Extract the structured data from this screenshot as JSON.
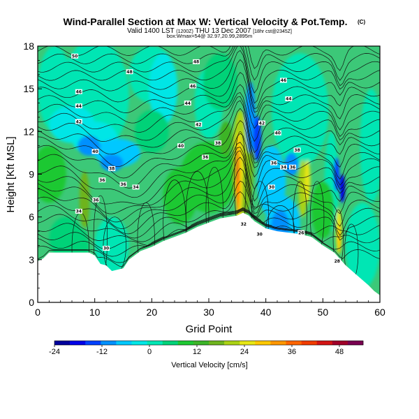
{
  "chart_data": {
    "type": "heatmap",
    "title": "Wind-Parallel Section at Max W: Vertical Velocity & Pot.Temp.",
    "title_mark": "(C)",
    "subtitle_parts": [
      "Valid 1400 LST",
      "(1200Z)",
      "THU 13 Dec 2007",
      "[18hr cst@2345Z]"
    ],
    "subtitle2": "box:Wmax=54@ 32.97,20.99,2895m",
    "xlabel": "Grid Point",
    "ylabel": "Height [Kft MSL]",
    "xlim": [
      0,
      60
    ],
    "ylim": [
      0,
      18
    ],
    "x_ticks": [
      0,
      10,
      20,
      30,
      40,
      50,
      60
    ],
    "y_ticks": [
      0,
      3,
      6,
      9,
      12,
      15,
      18
    ],
    "colorbar": {
      "label": "Vertical Velocity [cm/s]",
      "range": [
        -24,
        54
      ],
      "ticks": [
        -24,
        -12,
        0,
        12,
        24,
        36,
        48
      ],
      "colors": [
        "#00009c",
        "#0000e6",
        "#0040ff",
        "#0090ff",
        "#00c8ff",
        "#00e6e6",
        "#00e6b4",
        "#00d278",
        "#1ec832",
        "#3cb428",
        "#6eb41e",
        "#aad214",
        "#e6e614",
        "#ffc800",
        "#ff9600",
        "#ff6400",
        "#f03c00",
        "#d21414",
        "#a00028",
        "#780050"
      ]
    },
    "contour_labels": [
      {
        "text": "50",
        "x": 6.5,
        "y": 17.3
      },
      {
        "text": "48",
        "x": 27.8,
        "y": 16.9
      },
      {
        "text": "48",
        "x": 16.1,
        "y": 16.2
      },
      {
        "text": "46",
        "x": 43.1,
        "y": 15.6
      },
      {
        "text": "46",
        "x": 7.2,
        "y": 14.8
      },
      {
        "text": "46",
        "x": 27.2,
        "y": 15.2
      },
      {
        "text": "44",
        "x": 7.2,
        "y": 13.8
      },
      {
        "text": "44",
        "x": 26.3,
        "y": 14.0
      },
      {
        "text": "44",
        "x": 44.0,
        "y": 14.3
      },
      {
        "text": "42",
        "x": 7.2,
        "y": 12.7
      },
      {
        "text": "42",
        "x": 28.2,
        "y": 12.5
      },
      {
        "text": "42",
        "x": 39.3,
        "y": 12.6
      },
      {
        "text": "40",
        "x": 10.1,
        "y": 10.6
      },
      {
        "text": "40",
        "x": 25.1,
        "y": 11.0
      },
      {
        "text": "40",
        "x": 42.1,
        "y": 11.9
      },
      {
        "text": "38",
        "x": 31.6,
        "y": 11.2
      },
      {
        "text": "38",
        "x": 45.5,
        "y": 10.7
      },
      {
        "text": "38",
        "x": 13.0,
        "y": 9.4
      },
      {
        "text": "36",
        "x": 29.4,
        "y": 10.2
      },
      {
        "text": "36",
        "x": 41.4,
        "y": 9.8
      },
      {
        "text": "34",
        "x": 43.1,
        "y": 9.5
      },
      {
        "text": "36",
        "x": 44.7,
        "y": 9.5
      },
      {
        "text": "36",
        "x": 11.3,
        "y": 8.6
      },
      {
        "text": "36",
        "x": 15.0,
        "y": 8.3
      },
      {
        "text": "34",
        "x": 17.2,
        "y": 8.1
      },
      {
        "text": "30",
        "x": 41.0,
        "y": 8.1
      },
      {
        "text": "34",
        "x": 7.2,
        "y": 6.4
      },
      {
        "text": "36",
        "x": 10.2,
        "y": 7.2
      },
      {
        "text": "32",
        "x": 36.1,
        "y": 5.5
      },
      {
        "text": "30",
        "x": 38.9,
        "y": 4.8
      },
      {
        "text": "26",
        "x": 46.2,
        "y": 4.9
      },
      {
        "text": "30",
        "x": 12.0,
        "y": 3.8
      },
      {
        "text": "28",
        "x": 52.5,
        "y": 2.9
      }
    ]
  }
}
